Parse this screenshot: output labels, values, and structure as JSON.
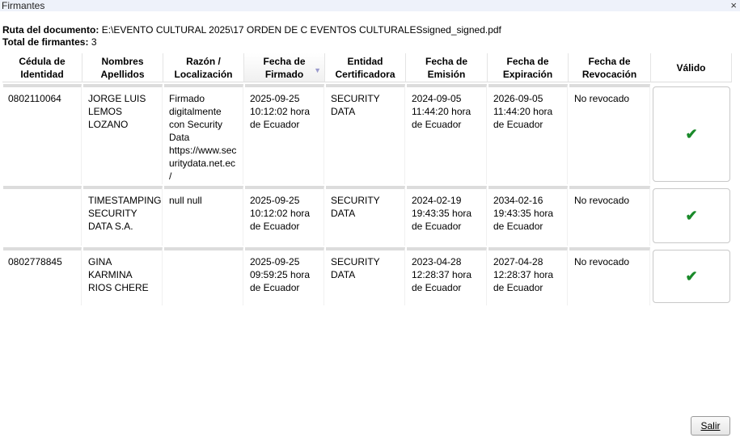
{
  "window": {
    "title": "Firmantes",
    "close": "×"
  },
  "info": {
    "path_label": "Ruta del documento:",
    "path_value": "E:\\EVENTO CULTURAL 2025\\17 ORDEN DE C EVENTOS CULTURALESsigned_signed.pdf",
    "total_label": "Total de firmantes:",
    "total_value": "3"
  },
  "columns": [
    "Cédula de Identidad",
    "Nombres Apellidos",
    "Razón / Localización",
    "Fecha de Firmado",
    "Entidad Certificadora",
    "Fecha de Emisión",
    "Fecha de Expiración",
    "Fecha de Revocación",
    "Válido"
  ],
  "sort_icon": "▼",
  "rows": [
    {
      "cedula": "0802110064",
      "nombres": "JORGE LUIS LEMOS LOZANO",
      "razon": "Firmado digitalmente con Security Data https://www.securitydata.net.ec/",
      "firmado": "2025-09-25 10:12:02 hora de Ecuador",
      "entidad": "SECURITY DATA",
      "emision": "2024-09-05 11:44:20 hora de Ecuador",
      "expiracion": "2026-09-05 11:44:20 hora de Ecuador",
      "revocacion": "No revocado",
      "valido": "✔"
    },
    {
      "cedula": "",
      "nombres": "TIMESTAMPING SECURITY DATA S.A.",
      "razon": "null null",
      "firmado": "2025-09-25 10:12:02 hora de Ecuador",
      "entidad": "SECURITY DATA",
      "emision": "2024-02-19 19:43:35 hora de Ecuador",
      "expiracion": "2034-02-16 19:43:35 hora de Ecuador",
      "revocacion": "No revocado",
      "valido": "✔"
    },
    {
      "cedula": "0802778845",
      "nombres": "GINA KARMINA RIOS CHERE",
      "razon": "",
      "firmado": "2025-09-25 09:59:25 hora de Ecuador",
      "entidad": "SECURITY DATA",
      "emision": "2023-04-28 12:28:37 hora de Ecuador",
      "expiracion": "2027-04-28 12:28:37 hora de Ecuador",
      "revocacion": "No revocado",
      "valido": "✔"
    }
  ],
  "buttons": {
    "salir": "Salir"
  }
}
